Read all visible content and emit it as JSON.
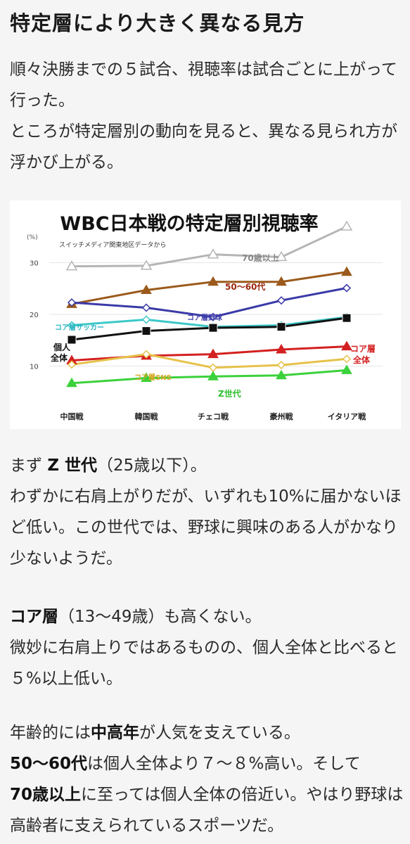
{
  "heading": "特定層により大きく異なる見方",
  "intro": {
    "line1": "順々決勝までの５試合、視聴率は試合ごとに上がって行った。",
    "line2": "ところが特定層別の動向を見ると、異なる見られ方が浮かび上がる。"
  },
  "chart_data": {
    "type": "line",
    "title": "WBC日本戦の特定層別視聴率",
    "subtitle": "スイッチメディア関東地区データから",
    "ylabel": "(%)",
    "yticks": [
      "30",
      "20",
      "10"
    ],
    "ylim": [
      3,
      40
    ],
    "categories": [
      "中国戦",
      "韓国戦",
      "チェコ戦",
      "豪州戦",
      "イタリア戦"
    ],
    "series": [
      {
        "name": "70歳以上",
        "color": "#b5b5b5",
        "marker": "triangle-open",
        "values": [
          29.3,
          29.4,
          31.6,
          31.1,
          37.0
        ]
      },
      {
        "name": "50〜60代",
        "color": "#9b5a1c",
        "marker": "triangle",
        "values": [
          22.0,
          24.7,
          26.3,
          26.3,
          28.2
        ]
      },
      {
        "name": "コア層野球",
        "color": "#3a3aa8",
        "marker": "diamond",
        "values": [
          22.3,
          21.3,
          19.5,
          22.7,
          25.1
        ]
      },
      {
        "name": "コア層サッカー",
        "color": "#3cc8c8",
        "marker": "diamond",
        "values": [
          17.9,
          19.0,
          17.6,
          17.9,
          19.5
        ]
      },
      {
        "name": "個人全体",
        "color": "#111111",
        "marker": "square",
        "values": [
          15.1,
          16.8,
          17.4,
          17.6,
          19.3
        ]
      },
      {
        "name": "コア層全体",
        "color": "#d42020",
        "marker": "triangle",
        "values": [
          11.1,
          12.0,
          12.3,
          13.2,
          13.8
        ]
      },
      {
        "name": "コア層SNS",
        "color": "#e6c24a",
        "marker": "diamond",
        "values": [
          10.3,
          12.3,
          9.7,
          10.2,
          11.4
        ]
      },
      {
        "name": "Z世代",
        "color": "#3bd13b",
        "marker": "triangle",
        "values": [
          6.7,
          7.7,
          8.0,
          8.2,
          9.2
        ]
      }
    ],
    "labels": {
      "s70": "70歳以上",
      "s5060": "50〜60代",
      "coreBaseball": "コア層野球",
      "coreSoccer": "コア層サッカー",
      "total1": "個人",
      "total2": "全体",
      "coreAll1": "コア層",
      "coreAll2": "全体",
      "coreSNS": "コア層SNS",
      "genZ": "Z世代"
    }
  },
  "genz": {
    "intro_pre": "まず ",
    "bold": "Z 世代",
    "intro_post": "（25歳以下）。",
    "body": "わずかに右肩上がりだが、いずれも10%に届かないほど低い。この世代では、野球に興味のある人がかなり少ないようだ。"
  },
  "core": {
    "bold": "コア層",
    "intro_post": "（13〜49歳）も高くない。",
    "body": "微妙に右肩上りではあるものの、個人全体と比べると５%以上低い。"
  },
  "senior": {
    "l1_pre": "年齢的には",
    "l1_bold": "中高年",
    "l1_post": "が人気を支えている。",
    "l2_bold": "50〜60代",
    "l2_post": "は個人全体より７〜８%高い。そして",
    "l3_bold": "70歳以上",
    "l3_post": "に至っては個人全体の倍近い。やはり野球は高齢者に支えられているスポーツだ。"
  }
}
